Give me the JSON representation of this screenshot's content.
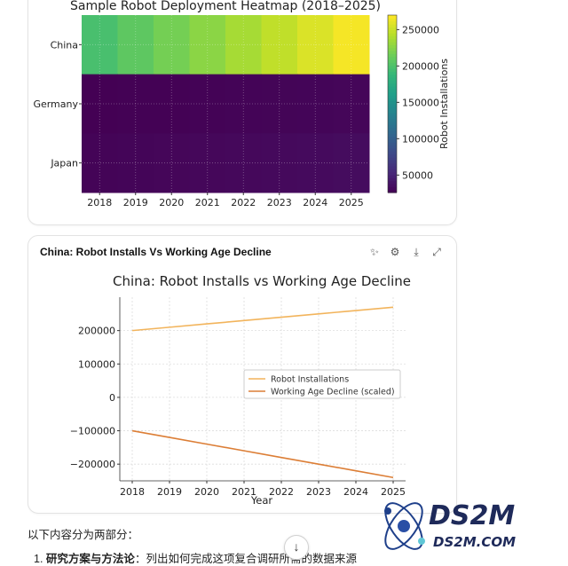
{
  "cards": [
    {
      "title": ""
    },
    {
      "title": "China: Robot Installs Vs Working Age Decline"
    }
  ],
  "toolbar": {
    "icons": [
      "sparkle-icon",
      "settings-sliders-icon",
      "download-icon",
      "expand-icon"
    ]
  },
  "chart_data": [
    {
      "type": "heatmap",
      "title": "Sample Robot Deployment Heatmap (2018–2025)",
      "x": [
        "2018",
        "2019",
        "2020",
        "2021",
        "2022",
        "2023",
        "2024",
        "2025"
      ],
      "y": [
        "China",
        "Germany",
        "Japan"
      ],
      "values": [
        [
          198000,
          208000,
          218000,
          227000,
          237000,
          247000,
          257000,
          267000
        ],
        [
          26000,
          26500,
          27000,
          27500,
          28000,
          28500,
          29000,
          29500
        ],
        [
          28000,
          28800,
          29500,
          30200,
          31000,
          31800,
          32600,
          33500
        ]
      ],
      "colorbar": {
        "label": "Robot Installations",
        "ticks": [
          50000,
          100000,
          150000,
          200000,
          250000
        ],
        "tick_labels": [
          "50000",
          "100000",
          "150000",
          "200000",
          "250000"
        ],
        "range": [
          26000,
          270000
        ],
        "colormap": "viridis"
      },
      "grid": true
    },
    {
      "type": "line",
      "title": "China: Robot Installs vs Working Age Decline",
      "xlabel": "Year",
      "ylabel": "",
      "x": [
        2018,
        2019,
        2020,
        2021,
        2022,
        2023,
        2024,
        2025
      ],
      "x_tick_labels": [
        "2018",
        "2019",
        "2020",
        "2021",
        "2022",
        "2023",
        "2024",
        "2025"
      ],
      "ylim": [
        -250000,
        300000
      ],
      "y_ticks": [
        200000,
        100000,
        0,
        -100000,
        -200000
      ],
      "y_tick_labels": [
        "200000",
        "100000",
        "0",
        "−100000",
        "−200000"
      ],
      "series": [
        {
          "name": "Robot Installations",
          "color": "#f2b45c",
          "values": [
            200000,
            210000,
            220000,
            230000,
            240000,
            250000,
            260000,
            270000
          ]
        },
        {
          "name": "Working Age Decline (scaled)",
          "color": "#dc7e36",
          "values": [
            -100000,
            -120000,
            -140000,
            -160000,
            -180000,
            -200000,
            -220000,
            -240000
          ]
        }
      ],
      "legend": "center-right",
      "grid": true
    }
  ],
  "below": {
    "line1": "以下内容分为两部分：",
    "line2_num": "1.",
    "line2_bold": "研究方案与方法论",
    "line2_rest": "：列出如何完成这项复合调研所需的数据来源"
  },
  "scroll_icon": "arrow-down-icon",
  "watermark": {
    "main": "DS2M",
    "sub": "DS2M.COM"
  }
}
